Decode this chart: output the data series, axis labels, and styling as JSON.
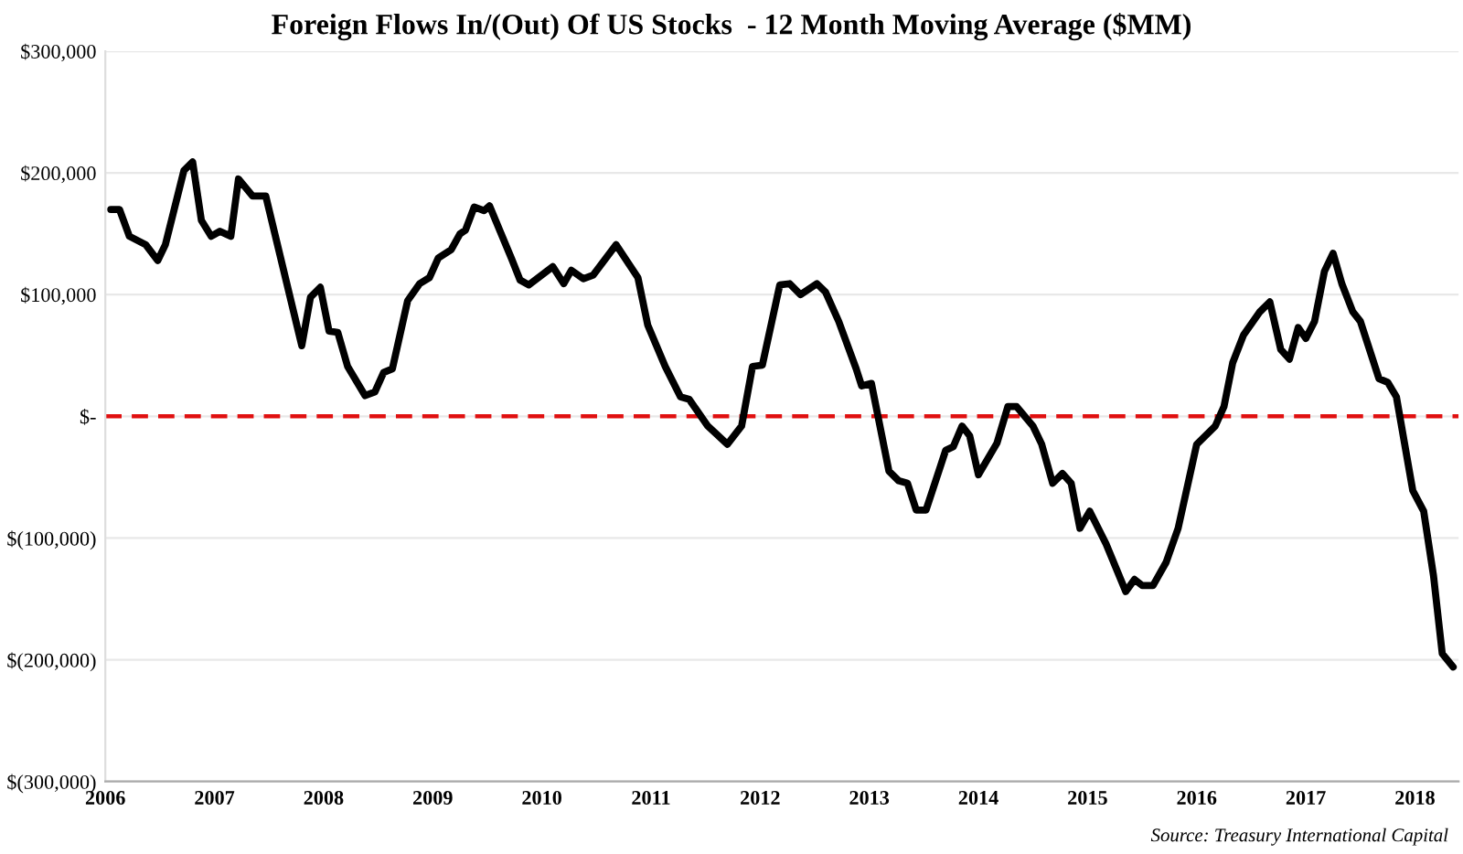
{
  "chart_data": {
    "type": "line",
    "title": "Foreign Flows In/(Out) Of US Stocks  - 12 Month Moving Average ($MM)",
    "annotations": [
      "Source: Treasury International Capital"
    ],
    "series": [
      {
        "color": "#000000",
        "x": [
          2006.05,
          2006.13,
          2006.22,
          2006.37,
          2006.48,
          2006.55,
          2006.72,
          2006.8,
          2006.88,
          2006.97,
          2007.05,
          2007.15,
          2007.22,
          2007.35,
          2007.47,
          2007.8,
          2007.88,
          2007.97,
          2008.05,
          2008.13,
          2008.22,
          2008.38,
          2008.47,
          2008.55,
          2008.63,
          2008.77,
          2008.88,
          2008.97,
          2009.05,
          2009.17,
          2009.25,
          2009.3,
          2009.38,
          2009.47,
          2009.52,
          2009.72,
          2009.8,
          2009.88,
          2010.1,
          2010.2,
          2010.27,
          2010.38,
          2010.47,
          2010.68,
          2010.88,
          2010.97,
          2011.13,
          2011.27,
          2011.35,
          2011.52,
          2011.7,
          2011.83,
          2011.93,
          2012.02,
          2012.18,
          2012.27,
          2012.37,
          2012.52,
          2012.6,
          2012.72,
          2012.88,
          2012.93,
          2013.02,
          2013.18,
          2013.27,
          2013.35,
          2013.43,
          2013.52,
          2013.7,
          2013.77,
          2013.85,
          2013.92,
          2014.0,
          2014.17,
          2014.27,
          2014.35,
          2014.5,
          2014.58,
          2014.68,
          2014.77,
          2014.85,
          2014.93,
          2015.02,
          2015.17,
          2015.35,
          2015.43,
          2015.5,
          2015.6,
          2015.72,
          2015.83,
          2016.0,
          2016.17,
          2016.25,
          2016.33,
          2016.43,
          2016.58,
          2016.67,
          2016.77,
          2016.85,
          2016.93,
          2017.0,
          2017.08,
          2017.17,
          2017.25,
          2017.33,
          2017.43,
          2017.5,
          2017.67,
          2017.75,
          2017.83,
          2017.98,
          2018.08,
          2018.17,
          2018.25,
          2018.35
        ],
        "values": [
          170000,
          170000,
          148000,
          141000,
          128000,
          141000,
          202000,
          209000,
          161000,
          148000,
          152000,
          148000,
          195000,
          181000,
          181000,
          58000,
          98000,
          106000,
          70000,
          69000,
          41000,
          17000,
          20000,
          36000,
          39000,
          95000,
          109000,
          114000,
          130000,
          137000,
          150000,
          153000,
          172000,
          169000,
          173000,
          130000,
          112000,
          108000,
          123000,
          109000,
          120000,
          113000,
          116000,
          141000,
          114000,
          75000,
          41000,
          16000,
          14000,
          -8000,
          -23000,
          -8000,
          41000,
          42000,
          108000,
          109000,
          100000,
          109000,
          102000,
          78000,
          39000,
          25000,
          27000,
          -45000,
          -53000,
          -55000,
          -77000,
          -77000,
          -28000,
          -25000,
          -8000,
          -16000,
          -48000,
          -22000,
          8000,
          8000,
          -8000,
          -23000,
          -55000,
          -47000,
          -55000,
          -92000,
          -78000,
          -105000,
          -144000,
          -134000,
          -139000,
          -139000,
          -120000,
          -92000,
          -23000,
          -8000,
          8000,
          44000,
          67000,
          86000,
          94000,
          55000,
          47000,
          73000,
          64000,
          78000,
          119000,
          134000,
          109000,
          86000,
          78000,
          31000,
          28000,
          16000,
          -61000,
          -78000,
          -131000,
          -195000,
          -206000
        ]
      }
    ],
    "xlim": [
      2006,
      2018.4
    ],
    "xticks": [
      2006,
      2007,
      2008,
      2009,
      2010,
      2011,
      2012,
      2013,
      2014,
      2015,
      2016,
      2017,
      2018
    ],
    "ylim": [
      -300000,
      300000
    ],
    "yticks": [
      {
        "value": 300000,
        "label": "$300,000"
      },
      {
        "value": 200000,
        "label": "$200,000"
      },
      {
        "value": 100000,
        "label": "$100,000"
      },
      {
        "value": 0,
        "label": "$-"
      },
      {
        "value": -100000,
        "label": "$(100,000)"
      },
      {
        "value": -200000,
        "label": "$(200,000)"
      },
      {
        "value": -300000,
        "label": "$(300,000)"
      }
    ],
    "ref_lines": [
      {
        "axis": "y",
        "value": 0,
        "color": "#e01010",
        "line_style": "dashed"
      }
    ],
    "grid": "y",
    "legend": false
  }
}
